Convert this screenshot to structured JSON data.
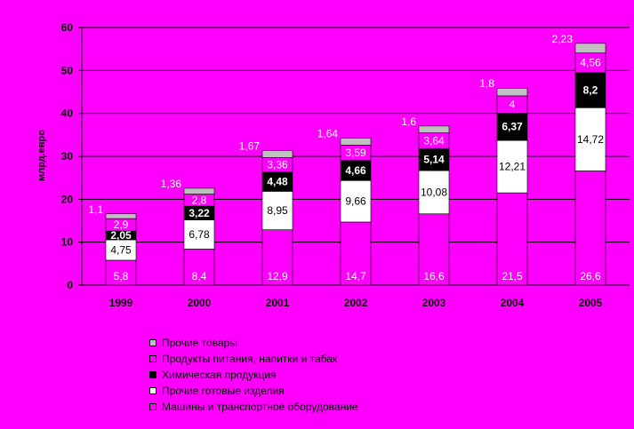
{
  "chart_data": {
    "type": "bar",
    "stacked": true,
    "ylabel": "млрд.евро",
    "ylim": [
      0,
      60
    ],
    "yticks": [
      0,
      10,
      20,
      30,
      40,
      50,
      60
    ],
    "grid": true,
    "legend_position": "bottom",
    "categories": [
      "1999",
      "2000",
      "2001",
      "2002",
      "2003",
      "2004",
      "2005"
    ],
    "series": [
      {
        "name": "Машины и транспортное оборудование",
        "color": "#ff00ff",
        "values": [
          5.8,
          8.4,
          12.9,
          14.7,
          16.6,
          21.5,
          26.6
        ],
        "labels": [
          "5,8",
          "8,4",
          "12,9",
          "14,7",
          "16,6",
          "21,5",
          "26,6"
        ]
      },
      {
        "name": "Прочие готовые изделия",
        "color": "#ffffff",
        "values": [
          4.75,
          6.78,
          8.95,
          9.66,
          10.08,
          12.21,
          14.72
        ],
        "labels": [
          "4,75",
          "6,78",
          "8,95",
          "9,66",
          "10,08",
          "12,21",
          "14,72"
        ]
      },
      {
        "name": "Химическая продукция",
        "color": "#000000",
        "values": [
          2.05,
          3.22,
          4.48,
          4.66,
          5.14,
          6.37,
          8.2
        ],
        "labels": [
          "2,05",
          "3,22",
          "4,48",
          "4,66",
          "5,14",
          "6,37",
          "8,2"
        ]
      },
      {
        "name": "Продукты питания, напитки и табак",
        "color": "#ff00ff",
        "values": [
          2.9,
          2.8,
          3.36,
          3.59,
          3.64,
          4,
          4.56
        ],
        "labels": [
          "2,9",
          "2,8",
          "3,36",
          "3,59",
          "3,64",
          "4",
          "4,56"
        ]
      },
      {
        "name": "Прочие товары",
        "color": "#c0c0c0",
        "values": [
          1.1,
          1.36,
          1.67,
          1.64,
          1.6,
          1.8,
          2.23
        ],
        "labels": [
          "1,1",
          "1,36",
          "1,67",
          "1,64",
          "1,6",
          "1,8",
          "2,23"
        ]
      }
    ],
    "legend_order": [
      "Прочие товары",
      "Продукты питания, напитки и табак",
      "Химическая продукция",
      "Прочие готовые изделия",
      "Машины и транспортное оборудование"
    ]
  }
}
